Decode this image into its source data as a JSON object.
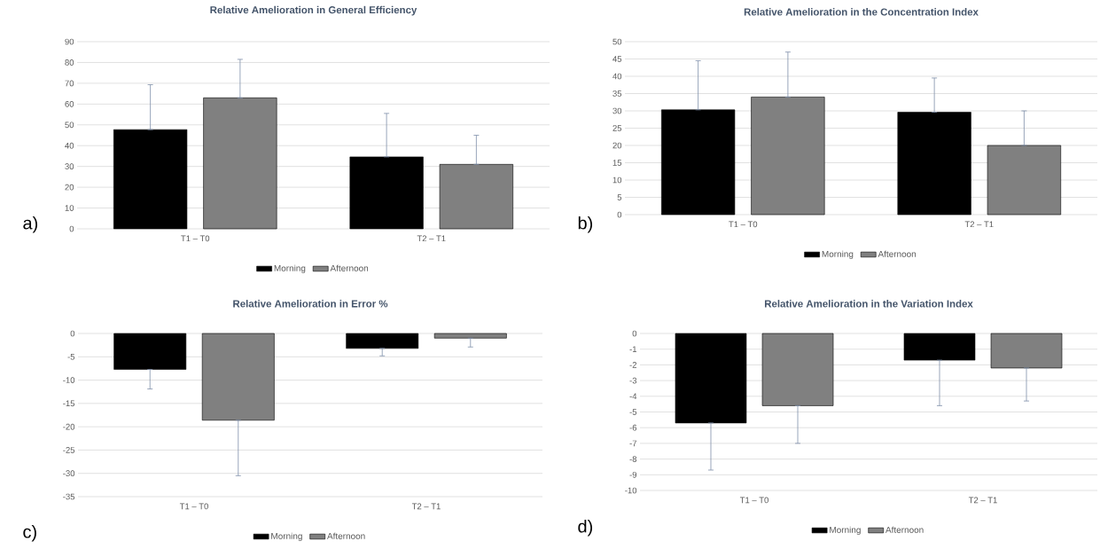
{
  "chart_data": [
    {
      "type": "bar",
      "title": "Relative Amelioration in General Efficiency",
      "categories": [
        "T1 – T0",
        "T2 – T1"
      ],
      "series": [
        {
          "name": "Morning",
          "color": "#000000",
          "values": [
            47.7,
            34.6
          ],
          "errors": [
            [
              47.7,
              69.3
            ],
            [
              34.6,
              55.5
            ]
          ]
        },
        {
          "name": "Afternoon",
          "color": "#808080",
          "values": [
            63,
            31
          ],
          "errors": [
            [
              63,
              81.5
            ],
            [
              31,
              45
            ]
          ]
        }
      ],
      "ylim": [
        0,
        90
      ],
      "yticks": [
        0,
        10,
        20,
        30,
        40,
        50,
        60,
        70,
        80,
        90
      ],
      "grid": "y",
      "legend": "bottom",
      "annotations": [
        "a)"
      ]
    },
    {
      "type": "bar",
      "title": "Relative Amelioration in the Concentration Index",
      "categories": [
        "T1 – T0",
        "T2 – T1"
      ],
      "series": [
        {
          "name": "Morning",
          "color": "#000000",
          "values": [
            30.3,
            29.6
          ],
          "errors": [
            [
              30.3,
              44.5
            ],
            [
              29.6,
              39.5
            ]
          ]
        },
        {
          "name": "Afternoon",
          "color": "#808080",
          "values": [
            34,
            20
          ],
          "errors": [
            [
              34,
              47
            ],
            [
              20,
              30
            ]
          ]
        }
      ],
      "ylim": [
        0,
        50
      ],
      "yticks": [
        0,
        5,
        10,
        15,
        20,
        25,
        30,
        35,
        40,
        45,
        50
      ],
      "grid": "y",
      "legend": "bottom",
      "annotations": [
        "b)"
      ]
    },
    {
      "type": "bar",
      "title": "Relative Amelioration in Error %",
      "categories": [
        "T1 – T0",
        "T2 – T1"
      ],
      "series": [
        {
          "name": "Morning",
          "color": "#000000",
          "values": [
            -7.7,
            -3.2
          ],
          "errors": [
            [
              -11.9,
              -7.7
            ],
            [
              -4.8,
              -3.2
            ]
          ]
        },
        {
          "name": "Afternoon",
          "color": "#808080",
          "values": [
            -18.6,
            -1.0
          ],
          "errors": [
            [
              -30.5,
              -18.6
            ],
            [
              -2.9,
              -1.0
            ]
          ]
        }
      ],
      "ylim": [
        -35,
        0
      ],
      "yticks": [
        -35,
        -30,
        -25,
        -20,
        -15,
        -10,
        -5,
        0
      ],
      "grid": "y",
      "legend": "bottom",
      "annotations": [
        "c)"
      ]
    },
    {
      "type": "bar",
      "title": "Relative Amelioration in the Variation Index",
      "categories": [
        "T1 – T0",
        "T2 – T1"
      ],
      "series": [
        {
          "name": "Morning",
          "color": "#000000",
          "values": [
            -5.7,
            -1.7
          ],
          "errors": [
            [
              -8.7,
              -5.7
            ],
            [
              -4.6,
              -1.7
            ]
          ]
        },
        {
          "name": "Afternoon",
          "color": "#808080",
          "values": [
            -4.6,
            -2.2
          ],
          "errors": [
            [
              -7.0,
              -4.6
            ],
            [
              -4.3,
              -2.2
            ]
          ]
        }
      ],
      "ylim": [
        -10,
        0
      ],
      "yticks": [
        -10,
        -9,
        -8,
        -7,
        -6,
        -5,
        -4,
        -3,
        -2,
        -1,
        0
      ],
      "grid": "y",
      "legend": "bottom",
      "annotations": [
        "d)"
      ]
    }
  ]
}
